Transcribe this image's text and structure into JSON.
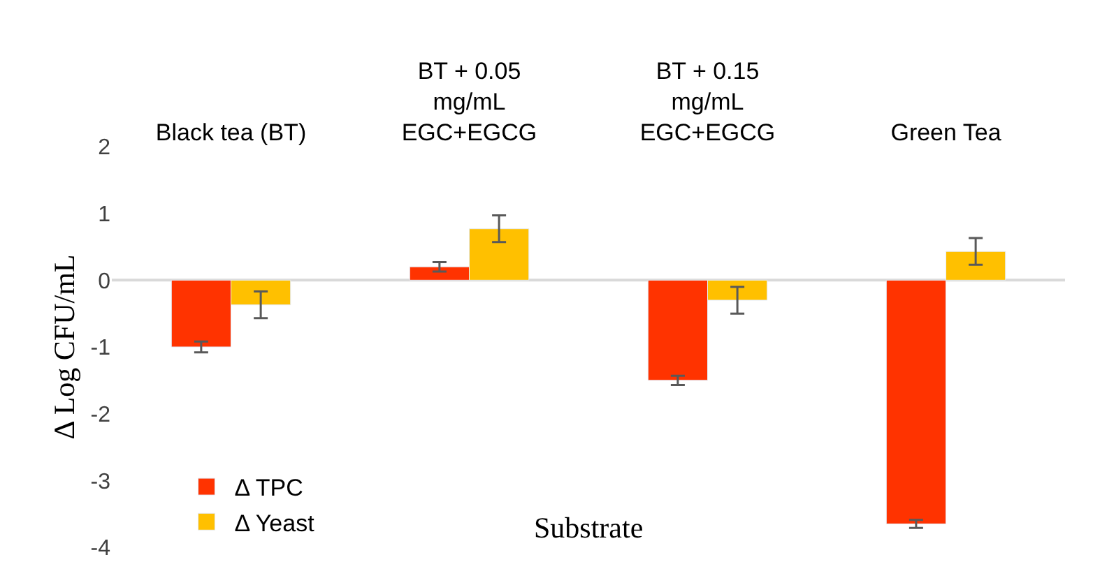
{
  "chart_data": {
    "type": "bar",
    "xlabel": "Substrate",
    "ylabel": "Δ Log CFU/mL",
    "categories": [
      "Black tea (BT)",
      "BT + 0.05\nmg/mL\nEGC+EGCG",
      "BT + 0.15\nmg/mL\nEGC+EGCG",
      "Green Tea"
    ],
    "series": [
      {
        "name": "Δ TPC",
        "color": "#ff3300",
        "values": [
          -1.0,
          0.2,
          -1.5,
          -3.65
        ],
        "errors": [
          0.08,
          0.07,
          0.07,
          0.06
        ]
      },
      {
        "name": "Δ Yeast",
        "color": "#ffc000",
        "values": [
          -0.37,
          0.77,
          -0.3,
          0.43
        ],
        "errors": [
          0.2,
          0.2,
          0.2,
          0.2
        ]
      }
    ],
    "ylim": [
      -4,
      2
    ],
    "yticks": [
      -4,
      -3,
      -2,
      -1,
      0,
      1,
      2
    ],
    "grid": false,
    "ref_lines": [
      {
        "axis": "y",
        "value": 0,
        "color": "#d9d9d9"
      }
    ],
    "legend": "bottom left"
  }
}
